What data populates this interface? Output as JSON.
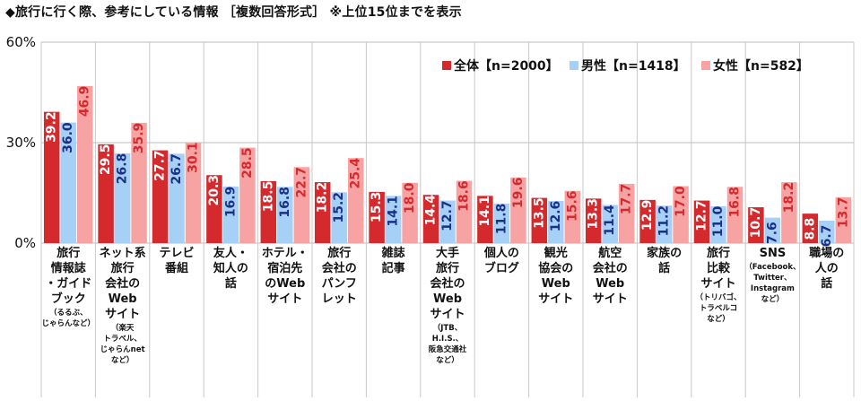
{
  "chart_data": {
    "type": "bar",
    "title": "◆旅行に行く際、参考にしている情報 ［複数回答形式］ ※上位15位までを表示",
    "ylim": [
      0,
      60
    ],
    "yticks": [
      "0%",
      "30%",
      "60%"
    ],
    "ytick_values": [
      0,
      30,
      60
    ],
    "grid": false,
    "legend_position": "top-right",
    "categories": [
      {
        "main": [
          "旅行",
          "情報誌",
          "・ガイド",
          "ブック"
        ],
        "note": [
          "（るるぶ、",
          "じゃらんなど）"
        ]
      },
      {
        "main": [
          "ネット系",
          "旅行",
          "会社の",
          "Web",
          "サイト"
        ],
        "note": [
          "（楽天",
          "トラベル、",
          "じゃらんnet",
          "など）"
        ]
      },
      {
        "main": [
          "テレビ",
          "番組"
        ],
        "note": []
      },
      {
        "main": [
          "友人・",
          "知人の",
          "話"
        ],
        "note": []
      },
      {
        "main": [
          "ホテル・",
          "宿泊先",
          "のWeb",
          "サイト"
        ],
        "note": []
      },
      {
        "main": [
          "旅行",
          "会社の",
          "パンフ",
          "レット"
        ],
        "note": []
      },
      {
        "main": [
          "雑誌",
          "記事"
        ],
        "note": []
      },
      {
        "main": [
          "大手",
          "旅行",
          "会社の",
          "Web",
          "サイト"
        ],
        "note": [
          "（JTB、",
          "H.I.S.、",
          "阪急交通社",
          "など）"
        ]
      },
      {
        "main": [
          "個人の",
          "ブログ"
        ],
        "note": []
      },
      {
        "main": [
          "観光",
          "協会の",
          "Web",
          "サイト"
        ],
        "note": []
      },
      {
        "main": [
          "航空",
          "会社の",
          "Web",
          "サイト"
        ],
        "note": []
      },
      {
        "main": [
          "家族の",
          "話"
        ],
        "note": []
      },
      {
        "main": [
          "旅行",
          "比較",
          "サイト"
        ],
        "note": [
          "（トリバゴ、",
          "トラベルコ",
          "など）"
        ]
      },
      {
        "main": [
          "SNS"
        ],
        "note": [
          "（Facebook、",
          "Twitter、",
          "Instagram",
          "など）"
        ]
      },
      {
        "main": [
          "職場の",
          "人の",
          "話"
        ],
        "note": []
      }
    ],
    "series": [
      {
        "name": "全体【n=2000】",
        "color": "#d42a2e",
        "values": [
          39.2,
          29.5,
          27.7,
          20.3,
          18.5,
          18.2,
          15.3,
          14.4,
          14.1,
          13.5,
          13.3,
          12.9,
          12.7,
          10.7,
          8.8
        ]
      },
      {
        "name": "男性【n=1418】",
        "color": "#a7d0f7",
        "values": [
          36.0,
          26.8,
          26.7,
          16.9,
          16.8,
          15.2,
          14.1,
          12.7,
          11.8,
          12.6,
          11.4,
          11.2,
          11.0,
          7.6,
          6.7
        ]
      },
      {
        "name": "女性【n=582】",
        "color": "#f7a3a3",
        "values": [
          46.9,
          35.9,
          30.1,
          28.5,
          22.7,
          25.4,
          18.0,
          18.6,
          19.6,
          15.6,
          17.7,
          17.0,
          16.8,
          18.2,
          13.7
        ]
      }
    ],
    "value_label_colors": [
      "#ffffff",
      "#1a2f88",
      "#d42a2e"
    ]
  }
}
